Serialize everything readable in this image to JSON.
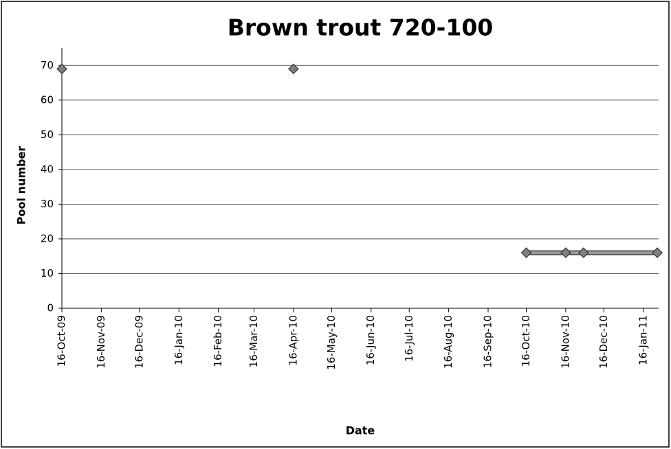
{
  "chart_data": {
    "type": "line",
    "title": "Brown trout 720-100",
    "x_label": "Date",
    "y_label": "Pool number",
    "series": [
      {
        "color": "#7f7f7f",
        "line": false,
        "x": [
          "2009-10-16",
          "2010-04-16"
        ],
        "values": [
          69,
          69
        ]
      },
      {
        "color": "#7f7f7f",
        "line": true,
        "x": [
          "2010-10-16",
          "2010-11-16",
          "2010-11-30",
          "2011-01-27"
        ],
        "values": [
          16,
          16,
          16,
          16
        ]
      }
    ],
    "xlim": [
      "2009-10-16",
      "2011-01-28"
    ],
    "xticks": [
      {
        "value": "2009-10-16",
        "label": "16-Oct-09"
      },
      {
        "value": "2009-11-16",
        "label": "16-Nov-09"
      },
      {
        "value": "2009-12-16",
        "label": "16-Dec-09"
      },
      {
        "value": "2010-01-16",
        "label": "16-Jan-10"
      },
      {
        "value": "2010-02-16",
        "label": "16-Feb-10"
      },
      {
        "value": "2010-03-16",
        "label": "16-Mar-10"
      },
      {
        "value": "2010-04-16",
        "label": "16-Apr-10"
      },
      {
        "value": "2010-05-16",
        "label": "16-May-10"
      },
      {
        "value": "2010-06-16",
        "label": "16-Jun-10"
      },
      {
        "value": "2010-07-16",
        "label": "16-Jul-10"
      },
      {
        "value": "2010-08-16",
        "label": "16-Aug-10"
      },
      {
        "value": "2010-09-16",
        "label": "16-Sep-10"
      },
      {
        "value": "2010-10-16",
        "label": "16-Oct-10"
      },
      {
        "value": "2010-11-16",
        "label": "16-Nov-10"
      },
      {
        "value": "2010-12-16",
        "label": "16-Dec-10"
      },
      {
        "value": "2011-01-16",
        "label": "16-Jan-11"
      }
    ],
    "ylim": [
      0,
      75
    ],
    "yticks": [
      0,
      10,
      20,
      30,
      40,
      50,
      60,
      70
    ],
    "grid": true
  }
}
